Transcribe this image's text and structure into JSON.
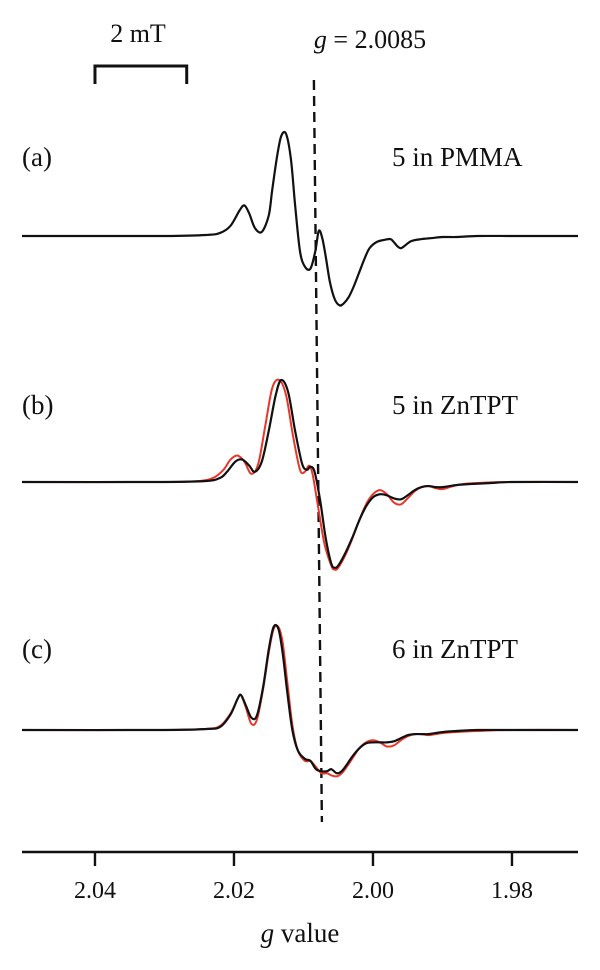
{
  "chart_data": {
    "type": "line",
    "title": "",
    "xlabel": {
      "italic": "g",
      "rest": " value"
    },
    "ylabel": "",
    "xlim": [
      2.0505,
      1.9705
    ],
    "x_ticks": [
      2.04,
      2.02,
      2.0,
      1.98
    ],
    "x_tick_labels": [
      "2.04",
      "2.02",
      "2.00",
      "1.98"
    ],
    "grid": false,
    "scale_bar": {
      "label": "2 mT",
      "g_start": 2.04,
      "g_end": 2.0268
    },
    "reference_line": {
      "prefix": "g",
      "text": " = 2.0085",
      "g": 2.0085
    },
    "colors": {
      "experiment": "#111111",
      "simulation": "#e8362a"
    },
    "panels": [
      {
        "label": "(a)",
        "sample": "5 in PMMA",
        "series": [
          {
            "role": "experiment",
            "x": [
              2.0505,
              2.04,
              2.03,
              2.024,
              2.022,
              2.0205,
              2.0192,
              2.0185,
              2.0178,
              2.017,
              2.016,
              2.015,
              2.0145,
              2.0138,
              2.0132,
              2.0125,
              2.0118,
              2.0112,
              2.0105,
              2.0098,
              2.009,
              2.0083,
              2.0078,
              2.0073,
              2.0068,
              2.0062,
              2.0055,
              2.0048,
              2.0042,
              2.0035,
              2.0028,
              2.002,
              2.0012,
              2.0005,
              1.9995,
              1.9985,
              1.9975,
              1.997,
              1.9965,
              1.996,
              1.9955,
              1.9945,
              1.993,
              1.9915,
              1.99,
              1.988,
              1.985,
              1.98,
              1.975,
              1.9705
            ],
            "y": [
              0,
              0,
              0,
              0.01,
              0.03,
              0.1,
              0.25,
              0.3,
              0.22,
              0.08,
              0.04,
              0.2,
              0.45,
              0.78,
              0.98,
              1.0,
              0.75,
              0.3,
              -0.15,
              -0.3,
              -0.32,
              -0.15,
              0.05,
              -0.02,
              -0.2,
              -0.45,
              -0.62,
              -0.68,
              -0.66,
              -0.6,
              -0.5,
              -0.36,
              -0.22,
              -0.12,
              -0.06,
              -0.04,
              -0.03,
              -0.06,
              -0.1,
              -0.12,
              -0.1,
              -0.05,
              -0.03,
              -0.02,
              -0.01,
              -0.01,
              0,
              0,
              0,
              0
            ]
          }
        ]
      },
      {
        "label": "(b)",
        "sample": "5 in ZnTPT",
        "series": [
          {
            "role": "simulation",
            "x": [
              2.0505,
              2.03,
              2.025,
              2.023,
              2.0215,
              2.0205,
              2.0195,
              2.0185,
              2.0175,
              2.0165,
              2.0155,
              2.0145,
              2.0135,
              2.0125,
              2.0115,
              2.0105,
              2.0098,
              2.0092,
              2.0087,
              2.008,
              2.007,
              2.006,
              2.0055,
              2.005,
              2.004,
              2.003,
              2.002,
              2.001,
              2.0,
              1.999,
              1.998,
              1.997,
              1.996,
              1.995,
              1.994,
              1.993,
              1.992,
              1.991,
              1.99,
              1.989,
              1.987,
              1.985,
              1.98,
              1.9705
            ],
            "y": [
              0,
              0,
              0.01,
              0.04,
              0.12,
              0.22,
              0.26,
              0.2,
              0.08,
              0.18,
              0.55,
              0.92,
              1.0,
              0.85,
              0.45,
              0.12,
              0.1,
              0.16,
              0.08,
              -0.2,
              -0.6,
              -0.82,
              -0.86,
              -0.84,
              -0.72,
              -0.56,
              -0.38,
              -0.22,
              -0.12,
              -0.08,
              -0.12,
              -0.2,
              -0.22,
              -0.16,
              -0.09,
              -0.05,
              -0.04,
              -0.06,
              -0.07,
              -0.05,
              -0.02,
              -0.01,
              0,
              0
            ]
          },
          {
            "role": "experiment",
            "x": [
              2.0505,
              2.03,
              2.024,
              2.022,
              2.021,
              2.0198,
              2.0188,
              2.0178,
              2.017,
              2.016,
              2.015,
              2.014,
              2.0132,
              2.0122,
              2.0112,
              2.0102,
              2.0095,
              2.009,
              2.0084,
              2.0076,
              2.0068,
              2.006,
              2.0055,
              2.005,
              2.004,
              2.003,
              2.002,
              2.001,
              2.0,
              1.999,
              1.998,
              1.997,
              1.996,
              1.995,
              1.994,
              1.993,
              1.992,
              1.991,
              1.99,
              1.988,
              1.986,
              1.983,
              1.98,
              1.9705
            ],
            "y": [
              0,
              0,
              0.01,
              0.04,
              0.1,
              0.2,
              0.22,
              0.16,
              0.1,
              0.2,
              0.5,
              0.85,
              1.0,
              0.88,
              0.5,
              0.18,
              0.12,
              0.15,
              0.1,
              -0.18,
              -0.55,
              -0.8,
              -0.84,
              -0.82,
              -0.7,
              -0.55,
              -0.38,
              -0.24,
              -0.15,
              -0.12,
              -0.13,
              -0.16,
              -0.17,
              -0.13,
              -0.08,
              -0.05,
              -0.04,
              -0.05,
              -0.05,
              -0.03,
              -0.02,
              -0.01,
              0,
              0
            ]
          }
        ]
      },
      {
        "label": "(c)",
        "sample": "6 in ZnTPT",
        "series": [
          {
            "role": "simulation",
            "x": [
              2.0505,
              2.03,
              2.024,
              2.022,
              2.0205,
              2.0195,
              2.019,
              2.0183,
              2.0175,
              2.0167,
              2.0158,
              2.015,
              2.0143,
              2.0136,
              2.013,
              2.0123,
              2.0116,
              2.0108,
              2.0098,
              2.009,
              2.0082,
              2.0074,
              2.0066,
              2.006,
              2.0052,
              2.0045,
              2.0038,
              2.003,
              2.002,
              2.001,
              2.0,
              1.999,
              1.998,
              1.997,
              1.996,
              1.995,
              1.994,
              1.993,
              1.992,
              1.991,
              1.99,
              1.988,
              1.985,
              1.98,
              1.9705
            ],
            "y": [
              0,
              0,
              0.01,
              0.04,
              0.16,
              0.3,
              0.34,
              0.22,
              0.06,
              0.1,
              0.4,
              0.75,
              0.98,
              1.0,
              0.85,
              0.45,
              0.05,
              -0.2,
              -0.3,
              -0.3,
              -0.36,
              -0.42,
              -0.42,
              -0.44,
              -0.45,
              -0.42,
              -0.36,
              -0.28,
              -0.18,
              -0.12,
              -0.1,
              -0.12,
              -0.16,
              -0.15,
              -0.1,
              -0.06,
              -0.04,
              -0.04,
              -0.05,
              -0.04,
              -0.03,
              -0.02,
              -0.01,
              0,
              0
            ]
          },
          {
            "role": "experiment",
            "x": [
              2.0505,
              2.03,
              2.024,
              2.022,
              2.0205,
              2.0195,
              2.019,
              2.0183,
              2.0175,
              2.0167,
              2.0158,
              2.015,
              2.0143,
              2.0136,
              2.013,
              2.0123,
              2.0116,
              2.0108,
              2.0098,
              2.009,
              2.0082,
              2.0074,
              2.0066,
              2.006,
              2.0052,
              2.0045,
              2.0038,
              2.003,
              2.002,
              2.001,
              2.0,
              1.999,
              1.998,
              1.997,
              1.996,
              1.995,
              1.994,
              1.993,
              1.992,
              1.991,
              1.99,
              1.988,
              1.985,
              1.98,
              1.9705
            ],
            "y": [
              0,
              0,
              0.01,
              0.03,
              0.15,
              0.3,
              0.34,
              0.24,
              0.12,
              0.14,
              0.42,
              0.78,
              1.0,
              0.98,
              0.75,
              0.35,
              0.0,
              -0.2,
              -0.28,
              -0.3,
              -0.38,
              -0.4,
              -0.4,
              -0.38,
              -0.42,
              -0.4,
              -0.34,
              -0.26,
              -0.18,
              -0.13,
              -0.12,
              -0.12,
              -0.12,
              -0.11,
              -0.08,
              -0.05,
              -0.04,
              -0.04,
              -0.04,
              -0.03,
              -0.02,
              -0.01,
              0,
              0,
              0
            ]
          }
        ]
      }
    ]
  }
}
